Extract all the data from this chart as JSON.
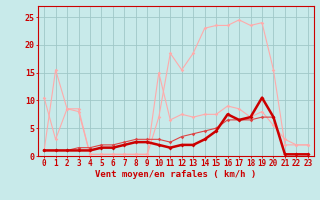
{
  "bg_color": "#c8eaea",
  "grid_color": "#a0c8c8",
  "x_labels": [
    "0",
    "1",
    "2",
    "3",
    "4",
    "5",
    "6",
    "7",
    "8",
    "9",
    "10",
    "11",
    "12",
    "13",
    "14",
    "15",
    "16",
    "17",
    "18",
    "19",
    "20",
    "21",
    "22",
    "23"
  ],
  "xlabel": "Vent moyen/en rafales ( km/h )",
  "ylim": [
    0,
    27
  ],
  "yticks": [
    0,
    5,
    10,
    15,
    20,
    25
  ],
  "line1_color": "#ffaaaa",
  "line2_color": "#ffaaaa",
  "line3_color": "#cc0000",
  "line4_color": "#dd4444",
  "line1_lw": 0.8,
  "line2_lw": 0.8,
  "line3_lw": 1.8,
  "line4_lw": 0.8,
  "line1_y": [
    10.5,
    3.0,
    8.5,
    8.5,
    0.3,
    0.3,
    0.3,
    0.3,
    0.3,
    0.3,
    7.0,
    18.5,
    15.5,
    18.5,
    23.0,
    23.5,
    23.5,
    24.5,
    23.5,
    24.0,
    15.5,
    2.0,
    2.0,
    2.0
  ],
  "line2_y": [
    1.0,
    15.5,
    8.5,
    8.0,
    0.3,
    0.3,
    0.3,
    0.3,
    0.3,
    0.3,
    15.0,
    6.5,
    7.5,
    7.0,
    7.5,
    7.5,
    9.0,
    8.5,
    7.0,
    8.0,
    5.5,
    3.0,
    2.0,
    2.0
  ],
  "line3_y": [
    1.0,
    1.0,
    1.0,
    1.0,
    1.0,
    1.5,
    1.5,
    2.0,
    2.5,
    2.5,
    2.0,
    1.5,
    2.0,
    2.0,
    3.0,
    4.5,
    7.5,
    6.5,
    7.0,
    10.5,
    7.0,
    0.3,
    0.3,
    0.3
  ],
  "line4_y": [
    1.0,
    1.0,
    1.0,
    1.5,
    1.5,
    2.0,
    2.0,
    2.5,
    3.0,
    3.0,
    3.0,
    2.5,
    3.5,
    4.0,
    4.5,
    5.0,
    6.5,
    6.5,
    6.5,
    7.0,
    7.0,
    0.3,
    0.3,
    0.3
  ],
  "tick_fontsize": 5.5,
  "xlabel_fontsize": 6.5,
  "ytick_fontsize": 6.0
}
